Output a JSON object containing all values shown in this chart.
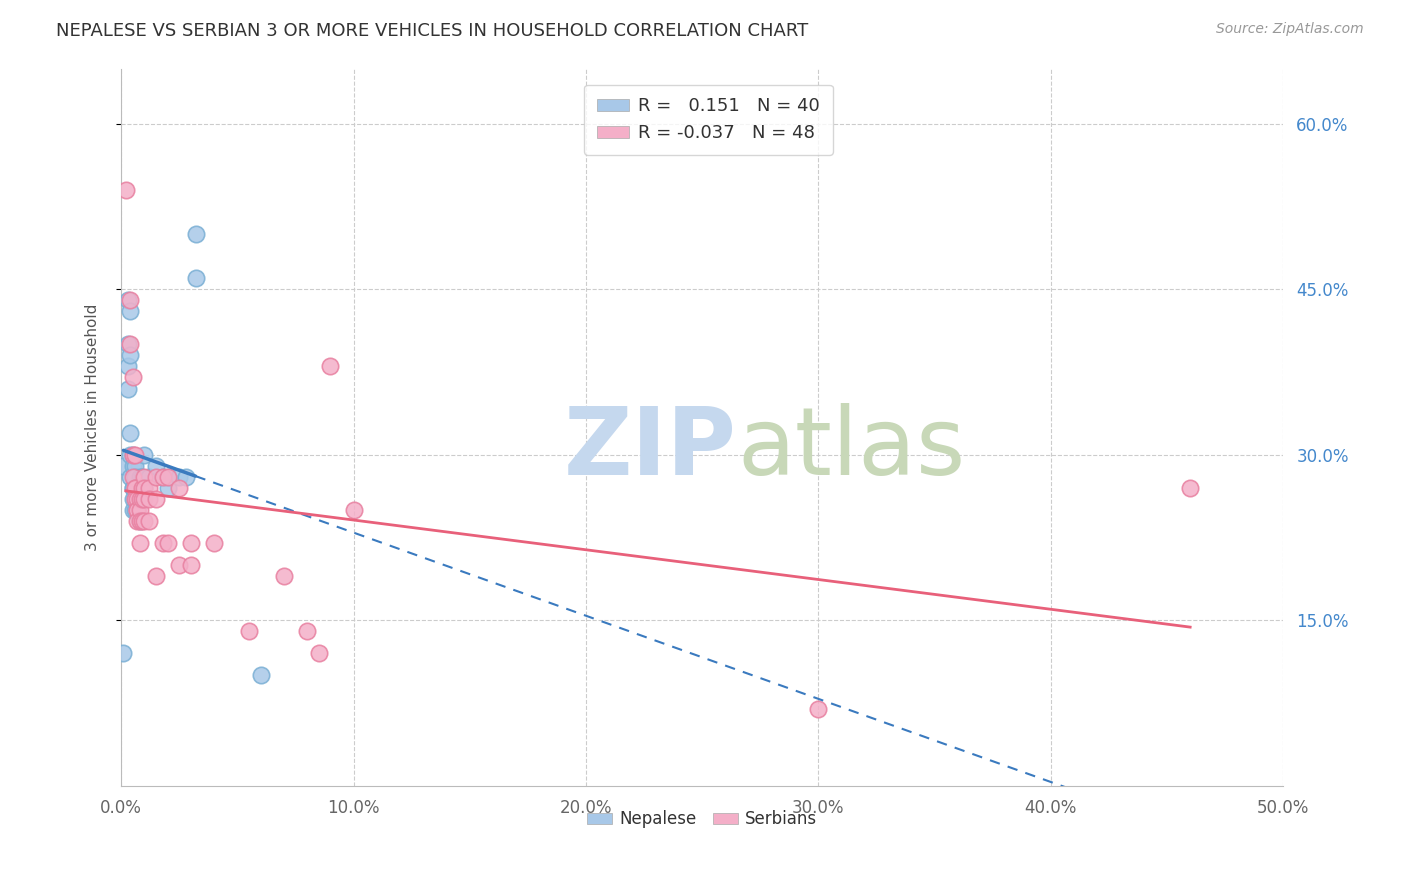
{
  "title": "NEPALESE VS SERBIAN 3 OR MORE VEHICLES IN HOUSEHOLD CORRELATION CHART",
  "source": "Source: ZipAtlas.com",
  "xlabel": "",
  "ylabel": "3 or more Vehicles in Household",
  "xlim": [
    0.0,
    0.5
  ],
  "ylim": [
    0.0,
    0.65
  ],
  "xticks": [
    0.0,
    0.1,
    0.2,
    0.3,
    0.4,
    0.5
  ],
  "xticklabels": [
    "0.0%",
    "10.0%",
    "20.0%",
    "30.0%",
    "40.0%",
    "50.0%"
  ],
  "yticks_right_labels": [
    "15.0%",
    "30.0%",
    "45.0%",
    "60.0%"
  ],
  "yticks_right_vals": [
    0.15,
    0.3,
    0.45,
    0.6
  ],
  "nepalese_color": "#a8c8e8",
  "serbian_color": "#f4afc8",
  "nepalese_edge_color": "#7aafd4",
  "serbian_edge_color": "#e880a0",
  "nepalese_line_color": "#3a7abf",
  "serbian_line_color": "#e8607a",
  "nepalese_R": 0.151,
  "nepalese_N": 40,
  "serbian_R": -0.037,
  "serbian_N": 48,
  "nepalese_points_x": [
    0.001,
    0.001,
    0.003,
    0.003,
    0.003,
    0.003,
    0.004,
    0.004,
    0.004,
    0.004,
    0.004,
    0.005,
    0.005,
    0.005,
    0.005,
    0.005,
    0.005,
    0.006,
    0.006,
    0.006,
    0.006,
    0.007,
    0.007,
    0.007,
    0.008,
    0.008,
    0.009,
    0.009,
    0.01,
    0.01,
    0.012,
    0.015,
    0.018,
    0.02,
    0.02,
    0.025,
    0.028,
    0.032,
    0.032,
    0.06
  ],
  "nepalese_points_y": [
    0.29,
    0.12,
    0.44,
    0.4,
    0.38,
    0.36,
    0.43,
    0.39,
    0.32,
    0.3,
    0.28,
    0.3,
    0.29,
    0.27,
    0.27,
    0.26,
    0.25,
    0.29,
    0.28,
    0.26,
    0.25,
    0.27,
    0.26,
    0.25,
    0.28,
    0.24,
    0.28,
    0.27,
    0.3,
    0.27,
    0.28,
    0.29,
    0.28,
    0.28,
    0.27,
    0.28,
    0.28,
    0.5,
    0.46,
    0.1
  ],
  "serbian_points_x": [
    0.002,
    0.004,
    0.004,
    0.005,
    0.005,
    0.005,
    0.006,
    0.006,
    0.006,
    0.006,
    0.007,
    0.007,
    0.007,
    0.007,
    0.008,
    0.008,
    0.008,
    0.008,
    0.009,
    0.009,
    0.009,
    0.01,
    0.01,
    0.01,
    0.01,
    0.012,
    0.012,
    0.012,
    0.015,
    0.015,
    0.015,
    0.018,
    0.018,
    0.02,
    0.02,
    0.025,
    0.025,
    0.03,
    0.03,
    0.04,
    0.055,
    0.07,
    0.08,
    0.085,
    0.09,
    0.1,
    0.3,
    0.46
  ],
  "serbian_points_y": [
    0.54,
    0.44,
    0.4,
    0.37,
    0.3,
    0.28,
    0.3,
    0.27,
    0.27,
    0.26,
    0.26,
    0.25,
    0.25,
    0.24,
    0.26,
    0.25,
    0.24,
    0.22,
    0.27,
    0.26,
    0.24,
    0.28,
    0.27,
    0.26,
    0.24,
    0.27,
    0.26,
    0.24,
    0.28,
    0.26,
    0.19,
    0.28,
    0.22,
    0.28,
    0.22,
    0.27,
    0.2,
    0.22,
    0.2,
    0.22,
    0.14,
    0.19,
    0.14,
    0.12,
    0.38,
    0.25,
    0.07,
    0.27
  ],
  "background_color": "#ffffff",
  "grid_color": "#cccccc",
  "watermark_zip": "ZIP",
  "watermark_atlas": "atlas",
  "watermark_color_zip": "#c5d8ee",
  "watermark_color_atlas": "#c8d8b8",
  "nepalese_line_x_start": 0.001,
  "nepalese_line_x_solid_end": 0.032,
  "nepalese_line_x_dash_end": 0.5,
  "serbian_line_x_start": 0.002,
  "serbian_line_x_end": 0.46
}
